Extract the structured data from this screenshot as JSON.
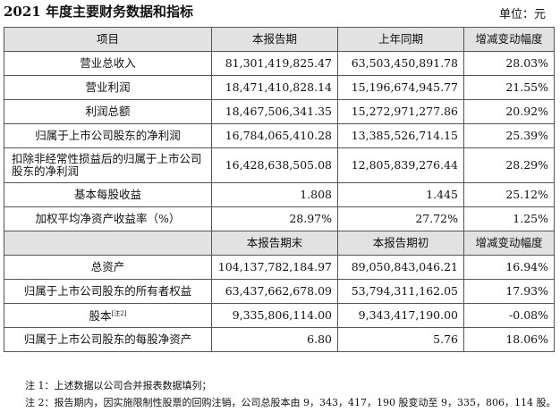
{
  "header": {
    "title": "2021 年度主要财务数据和指标",
    "unit": "单位：元"
  },
  "table": {
    "header1": [
      "项目",
      "本报告期",
      "上年同期",
      "增减变动幅度"
    ],
    "header2": [
      "",
      "本报告期末",
      "本报告期初",
      "增减变动幅度"
    ],
    "rows": [
      {
        "label": "营业总收入",
        "current": "81,301,419,825.47",
        "prior": "63,503,450,891.78",
        "change": "28.03%"
      },
      {
        "label": "营业利润",
        "current": "18,471,410,828.14",
        "prior": "15,196,674,945.77",
        "change": "21.55%"
      },
      {
        "label": "利润总额",
        "current": "18,467,506,341.35",
        "prior": "15,272,971,277.86",
        "change": "20.92%"
      },
      {
        "label": "归属于上市公司股东的净利润",
        "current": "16,784,065,410.28",
        "prior": "13,385,526,714.15",
        "change": "25.39%"
      },
      {
        "label": "扣除非经常性损益后的归属于上市公司股东的净利润",
        "current": "16,428,638,505.08",
        "prior": "12,805,839,276.44",
        "change": "28.29%"
      },
      {
        "label": "基本每股收益",
        "current": "1.808",
        "prior": "1.445",
        "change": "25.12%"
      },
      {
        "label": "加权平均净资产收益率（%）",
        "current": "28.97%",
        "prior": "27.72%",
        "change": "1.25%"
      }
    ],
    "rows2": [
      {
        "label": "总资产",
        "current": "104,137,782,184.97",
        "prior": "89,050,843,046.21",
        "change": "16.94%"
      },
      {
        "label": "归属于上市公司股东的所有者权益",
        "current": "63,437,662,678.09",
        "prior": "53,794,311,162.05",
        "change": "17.93%"
      },
      {
        "label": "股本",
        "note_ref": "[注2]",
        "current": "9,335,806,114.00",
        "prior": "9,343,417,190.00",
        "change": "-0.08%"
      },
      {
        "label": "归属于上市公司股东的每股净资产",
        "current": "6.80",
        "prior": "5.76",
        "change": "18.06%"
      }
    ]
  },
  "notes": [
    "注 1：上述数据以公司合并报表数据填列；",
    "注 2：报告期内，因实施限制性股票的回购注销，公司总股本由 9，343，417，190 股变动至 9，335，806，114 股。"
  ]
}
